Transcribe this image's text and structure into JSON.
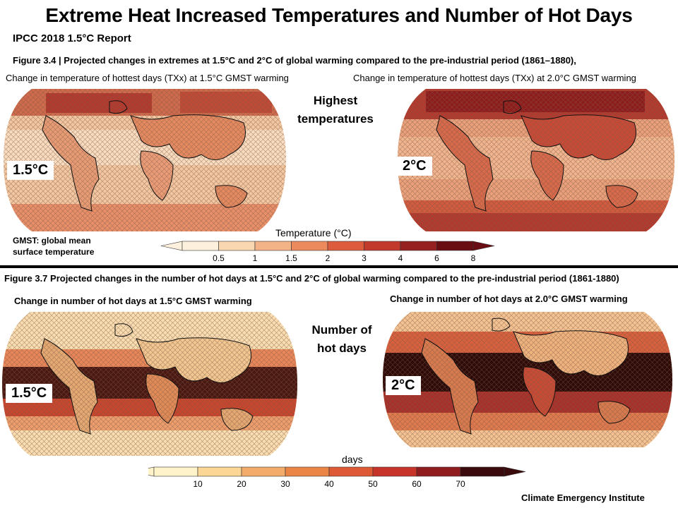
{
  "header": {
    "title": "Extreme Heat Increased Temperatures and Number of Hot Days",
    "subtitle": "IPCC 2018 1.5°C Report"
  },
  "figure_top": {
    "caption": "Figure 3.4 | Projected changes in extremes at 1.5°C and 2°C of global warming compared to the pre-industrial period (1861–1880),",
    "left_map_label": "Change in temperature of hottest days (TXx) at 1.5°C GMST warming",
    "right_map_label": "Change in temperature of hottest days (TXx) at 2.0°C GMST warming",
    "center_label_line1": "Highest",
    "center_label_line2": "temperatures",
    "left_badge": "1.5°C",
    "right_badge": "2°C",
    "note_line1": "GMST:  global mean",
    "note_line2": "surface temperature",
    "legend": {
      "title": "Temperature (°C)",
      "ticks": [
        "0.5",
        "1",
        "1.5",
        "2",
        "3",
        "4",
        "6",
        "8"
      ],
      "colors": [
        "#fdf0dc",
        "#f9d7b1",
        "#f4b386",
        "#ec8a5e",
        "#dd5c3e",
        "#c13a2c",
        "#962020",
        "#6a0d12"
      ]
    }
  },
  "figure_bottom": {
    "caption": "Figure 3.7 Projected changes in the number of hot days at 1.5°C  and 2°C of global warming compared to the pre-industrial period (1861-1880)",
    "left_map_label": "Change in number of hot days at 1.5°C GMST warming",
    "right_map_label": "Change in number of hot days at 2.0°C GMST warming",
    "center_label_line1": "Number of",
    "center_label_line2": "hot days",
    "left_badge": "1.5°C",
    "right_badge": "2°C",
    "legend": {
      "title": "days",
      "ticks": [
        "10",
        "20",
        "30",
        "40",
        "50",
        "60",
        "70"
      ],
      "colors": [
        "#fff3c9",
        "#fbd694",
        "#f3ad6a",
        "#ea8546",
        "#de5a34",
        "#c7352a",
        "#8f1c1f",
        "#3a0a0c"
      ]
    }
  },
  "footer": {
    "credit": "Climate Emergency Institute"
  }
}
